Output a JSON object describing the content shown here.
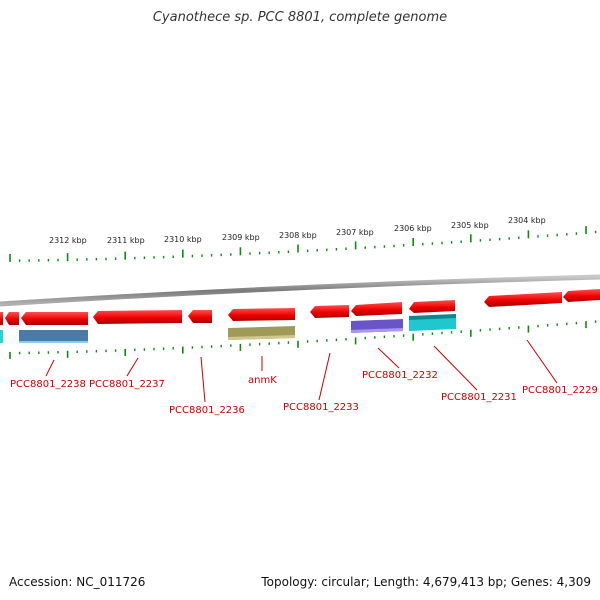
{
  "title": "Cyanothece sp. PCC 8801, complete genome",
  "colors": {
    "backbone": "#8a8a8a",
    "gene": "#ee1111",
    "tick": "#118811",
    "label": "#cc0000"
  },
  "ruler": [
    {
      "label": "2312 kbp"
    },
    {
      "label": "2311 kbp"
    },
    {
      "label": "2310 kbp"
    },
    {
      "label": "2309 kbp"
    },
    {
      "label": "2308 kbp"
    },
    {
      "label": "2307 kbp"
    },
    {
      "label": "2306 kbp"
    },
    {
      "label": "2305 kbp"
    },
    {
      "label": "2304 kbp"
    }
  ],
  "gene_labels": [
    "PCC8801_2238",
    "PCC8801_2237",
    "PCC8801_2236",
    "anmK",
    "PCC8801_2233",
    "PCC8801_2232",
    "PCC8801_2231",
    "PCC8801_2229"
  ],
  "footer": {
    "accession": "Accession: NC_011726",
    "summary": "Topology: circular; Length: 4,679,413 bp; Genes: 4,309"
  }
}
